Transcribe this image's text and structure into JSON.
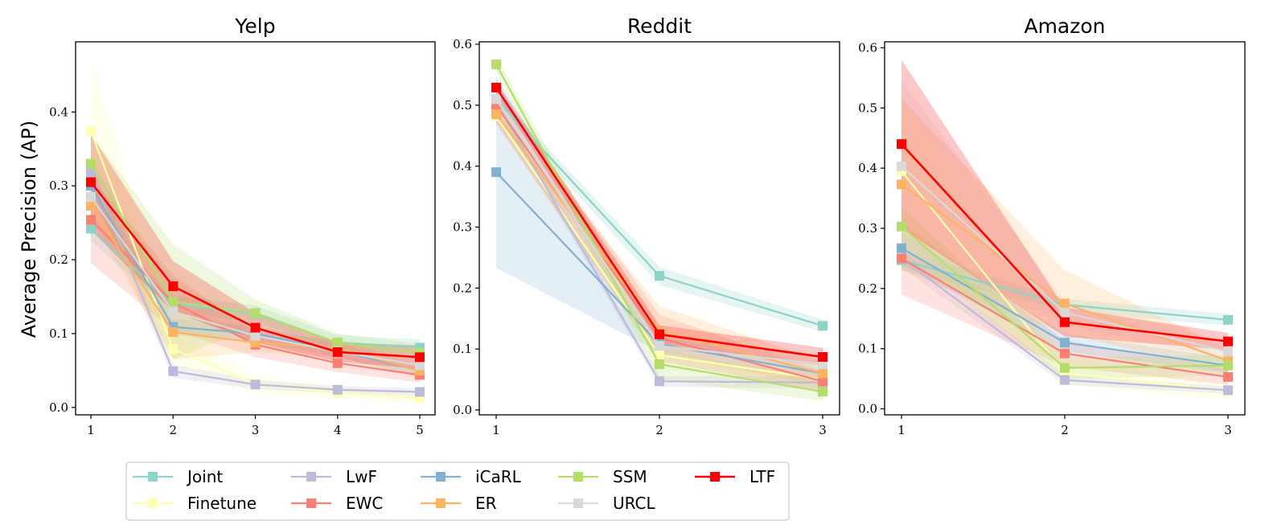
{
  "chart_data": {
    "type": "line",
    "ylabel": "Average Precision (AP)",
    "legend": {
      "placement": "bottom-left",
      "entries": [
        "Joint",
        "Finetune",
        "LwF",
        "EWC",
        "iCaRL",
        "ER",
        "SSM",
        "URCL",
        "LTF"
      ]
    },
    "colors": {
      "Joint": "#8dd3c7",
      "Finetune": "#ffffb3",
      "LwF": "#bebada",
      "EWC": "#fb8072",
      "iCaRL": "#80b1d3",
      "ER": "#fdb462",
      "SSM": "#b3de69",
      "URCL": "#d9d9d9",
      "LTF": "#ff0000"
    },
    "panels": [
      {
        "title": "Yelp",
        "x": [
          1,
          2,
          3,
          4,
          5
        ],
        "ylim": [
          -0.01,
          0.495
        ],
        "yticks": [
          "0.0",
          "0.1",
          "0.2",
          "0.3",
          "0.4"
        ],
        "ytick_values": [
          0.0,
          0.1,
          0.2,
          0.3,
          0.4
        ],
        "xtick_labels": [
          "1",
          "2",
          "3",
          "4",
          "5"
        ],
        "series": [
          {
            "name": "Joint",
            "values": [
              0.242,
              0.14,
              0.127,
              0.088,
              0.081
            ],
            "lower": [
              0.225,
              0.128,
              0.116,
              0.078,
              0.07
            ],
            "upper": [
              0.259,
              0.152,
              0.138,
              0.098,
              0.092
            ]
          },
          {
            "name": "Finetune",
            "values": [
              0.374,
              0.079,
              0.032,
              0.02,
              0.013
            ],
            "lower": [
              0.272,
              0.058,
              0.02,
              0.012,
              0.007
            ],
            "upper": [
              0.475,
              0.1,
              0.044,
              0.028,
              0.02
            ]
          },
          {
            "name": "LwF",
            "values": [
              0.318,
              0.049,
              0.031,
              0.024,
              0.021
            ],
            "lower": [
              0.3,
              0.04,
              0.025,
              0.019,
              0.016
            ],
            "upper": [
              0.336,
              0.058,
              0.037,
              0.029,
              0.026
            ]
          },
          {
            "name": "EWC",
            "values": [
              0.254,
              0.142,
              0.085,
              0.06,
              0.044
            ],
            "lower": [
              0.195,
              0.105,
              0.068,
              0.048,
              0.034
            ],
            "upper": [
              0.313,
              0.179,
              0.102,
              0.072,
              0.054
            ]
          },
          {
            "name": "iCaRL",
            "values": [
              0.3,
              0.109,
              0.1,
              0.077,
              0.05
            ],
            "lower": [
              0.282,
              0.098,
              0.09,
              0.068,
              0.042
            ],
            "upper": [
              0.318,
              0.12,
              0.11,
              0.086,
              0.058
            ]
          },
          {
            "name": "ER",
            "values": [
              0.273,
              0.102,
              0.088,
              0.08,
              0.05
            ],
            "lower": [
              0.255,
              0.065,
              0.075,
              0.068,
              0.04
            ],
            "upper": [
              0.291,
              0.139,
              0.101,
              0.092,
              0.06
            ]
          },
          {
            "name": "SSM",
            "values": [
              0.33,
              0.143,
              0.128,
              0.088,
              0.074
            ],
            "lower": [
              0.29,
              0.065,
              0.11,
              0.076,
              0.062
            ],
            "upper": [
              0.37,
              0.221,
              0.146,
              0.1,
              0.086
            ]
          },
          {
            "name": "URCL",
            "values": [
              0.285,
              0.13,
              0.097,
              0.076,
              0.057
            ],
            "lower": [
              0.23,
              0.11,
              0.085,
              0.066,
              0.048
            ],
            "upper": [
              0.34,
              0.15,
              0.109,
              0.086,
              0.066
            ]
          },
          {
            "name": "LTF",
            "values": [
              0.305,
              0.164,
              0.108,
              0.075,
              0.068
            ],
            "lower": [
              0.24,
              0.13,
              0.088,
              0.062,
              0.052
            ],
            "upper": [
              0.37,
              0.198,
              0.128,
              0.088,
              0.084
            ]
          }
        ]
      },
      {
        "title": "Reddit",
        "x": [
          1,
          2,
          3
        ],
        "ylim": [
          -0.008,
          0.604
        ],
        "yticks": [
          "0.0",
          "0.1",
          "0.2",
          "0.3",
          "0.4",
          "0.5",
          "0.6"
        ],
        "ytick_values": [
          0.0,
          0.1,
          0.2,
          0.3,
          0.4,
          0.5,
          0.6
        ],
        "xtick_labels": [
          "1",
          "2",
          "3"
        ],
        "series": [
          {
            "name": "Joint",
            "values": [
              0.51,
              0.22,
              0.138
            ],
            "lower": [
              0.5,
              0.205,
              0.128
            ],
            "upper": [
              0.52,
              0.235,
              0.148
            ]
          },
          {
            "name": "Finetune",
            "values": [
              0.482,
              0.09,
              0.05
            ],
            "lower": [
              0.47,
              0.07,
              0.035
            ],
            "upper": [
              0.494,
              0.11,
              0.065
            ]
          },
          {
            "name": "LwF",
            "values": [
              0.505,
              0.047,
              0.045
            ],
            "lower": [
              0.495,
              0.038,
              0.035
            ],
            "upper": [
              0.515,
              0.056,
              0.055
            ]
          },
          {
            "name": "EWC",
            "values": [
              0.5,
              0.118,
              0.047
            ],
            "lower": [
              0.47,
              0.08,
              0.03
            ],
            "upper": [
              0.53,
              0.156,
              0.064
            ]
          },
          {
            "name": "iCaRL",
            "values": [
              0.39,
              0.108,
              0.06
            ],
            "lower": [
              0.233,
              0.095,
              0.05
            ],
            "upper": [
              0.547,
              0.121,
              0.07
            ]
          },
          {
            "name": "ER",
            "values": [
              0.485,
              0.13,
              0.06
            ],
            "lower": [
              0.47,
              0.09,
              0.04
            ],
            "upper": [
              0.5,
              0.17,
              0.08
            ]
          },
          {
            "name": "SSM",
            "values": [
              0.567,
              0.075,
              0.03
            ],
            "lower": [
              0.555,
              0.05,
              0.015
            ],
            "upper": [
              0.579,
              0.1,
              0.045
            ]
          },
          {
            "name": "URCL",
            "values": [
              0.51,
              0.105,
              0.075
            ],
            "lower": [
              0.495,
              0.09,
              0.06
            ],
            "upper": [
              0.525,
              0.12,
              0.09
            ]
          },
          {
            "name": "LTF",
            "values": [
              0.529,
              0.124,
              0.087
            ],
            "lower": [
              0.519,
              0.109,
              0.072
            ],
            "upper": [
              0.539,
              0.139,
              0.102
            ]
          }
        ]
      },
      {
        "title": "Amazon",
        "x": [
          1,
          2,
          3
        ],
        "ylim": [
          -0.01,
          0.61
        ],
        "yticks": [
          "0.0",
          "0.1",
          "0.2",
          "0.3",
          "0.4",
          "0.5",
          "0.6"
        ],
        "ytick_values": [
          0.0,
          0.1,
          0.2,
          0.3,
          0.4,
          0.5,
          0.6
        ],
        "xtick_labels": [
          "1",
          "2",
          "3"
        ],
        "series": [
          {
            "name": "Joint",
            "values": [
              0.247,
              0.173,
              0.148
            ],
            "lower": [
              0.23,
              0.163,
              0.138
            ],
            "upper": [
              0.264,
              0.183,
              0.158
            ]
          },
          {
            "name": "Finetune",
            "values": [
              0.395,
              0.06,
              0.03
            ],
            "lower": [
              0.27,
              0.04,
              0.015
            ],
            "upper": [
              0.52,
              0.08,
              0.045
            ]
          },
          {
            "name": "LwF",
            "values": [
              0.25,
              0.048,
              0.031
            ],
            "lower": [
              0.235,
              0.04,
              0.025
            ],
            "upper": [
              0.265,
              0.056,
              0.037
            ]
          },
          {
            "name": "EWC",
            "values": [
              0.25,
              0.092,
              0.053
            ],
            "lower": [
              0.19,
              0.07,
              0.04
            ],
            "upper": [
              0.31,
              0.114,
              0.066
            ]
          },
          {
            "name": "iCaRL",
            "values": [
              0.267,
              0.11,
              0.072
            ],
            "lower": [
              0.24,
              0.095,
              0.06
            ],
            "upper": [
              0.294,
              0.125,
              0.084
            ]
          },
          {
            "name": "ER",
            "values": [
              0.373,
              0.175,
              0.08
            ],
            "lower": [
              0.23,
              0.125,
              0.06
            ],
            "upper": [
              0.516,
              0.23,
              0.1
            ]
          },
          {
            "name": "SSM",
            "values": [
              0.303,
              0.068,
              0.072
            ],
            "lower": [
              0.27,
              0.05,
              0.055
            ],
            "upper": [
              0.336,
              0.086,
              0.089
            ]
          },
          {
            "name": "URCL",
            "values": [
              0.403,
              0.16,
              0.095
            ],
            "lower": [
              0.26,
              0.14,
              0.08
            ],
            "upper": [
              0.546,
              0.18,
              0.11
            ]
          },
          {
            "name": "LTF",
            "values": [
              0.44,
              0.144,
              0.112
            ],
            "lower": [
              0.3,
              0.12,
              0.098
            ],
            "upper": [
              0.58,
              0.168,
              0.126
            ]
          }
        ]
      }
    ]
  }
}
